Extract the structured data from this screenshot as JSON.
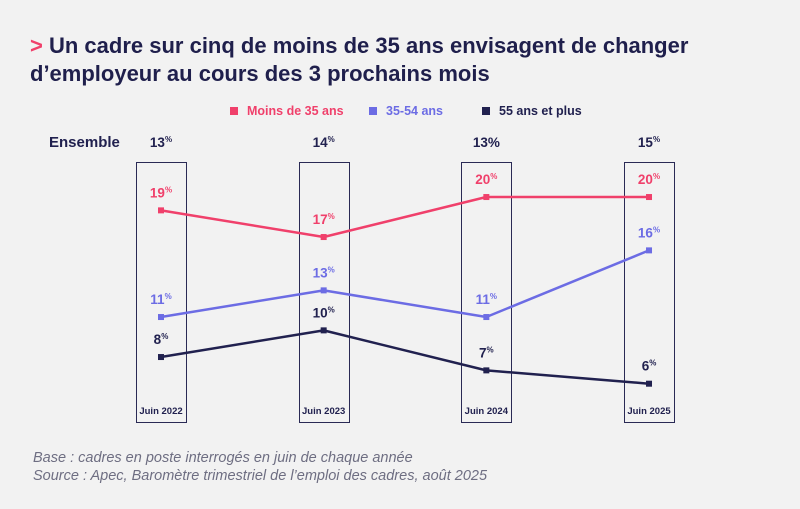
{
  "title_marker": ">",
  "colors": {
    "background": "#F2F2F2",
    "title": "#1F1F4C",
    "accent": "#F0406B",
    "frame": "#2A2A55",
    "footnote": "#6E6E82"
  },
  "chart_data": {
    "type": "line",
    "title": "Un cadre sur cinq de moins de 35 ans envisagent de changer d’employeur au cours des 3 prochains mois",
    "xlabel": "",
    "ylabel": "",
    "legend_position": "top",
    "unit": "%",
    "categories": [
      "Juin 2022",
      "Juin 2023",
      "Juin 2024",
      "Juin 2025"
    ],
    "series": [
      {
        "name": "Moins de 35 ans",
        "color": "#F0406B",
        "values": [
          19,
          17,
          20,
          20
        ]
      },
      {
        "name": "35-54 ans",
        "color": "#6C6CE4",
        "values": [
          11,
          13,
          11,
          16
        ]
      },
      {
        "name": "55 ans et plus",
        "color": "#21214F",
        "values": [
          8,
          10,
          7,
          6
        ]
      }
    ],
    "ensemble": {
      "label": "Ensemble",
      "values": [
        13,
        14,
        13,
        15
      ]
    }
  },
  "footnote": {
    "base": "Base : cadres en poste interrogés en juin de chaque année",
    "source": "Source : Apec, Baromètre trimestriel de l’emploi des cadres, août 2025"
  }
}
